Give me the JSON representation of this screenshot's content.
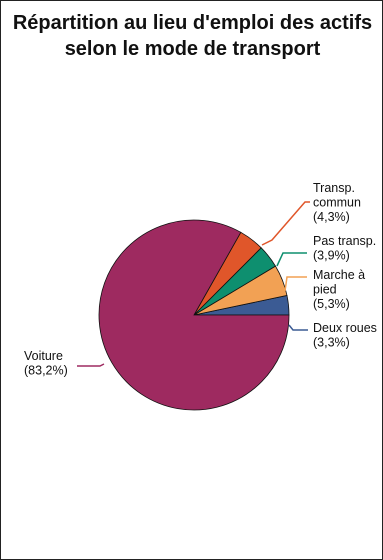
{
  "chart_data": {
    "type": "pie",
    "title": "Répartition au lieu d'emploi des actifs selon le mode de transport",
    "start_angle_deg": 0,
    "direction": "counterclockwise",
    "slices": [
      {
        "lines": [
          "Deux roues",
          "(3,3%)"
        ],
        "value": 3.3,
        "color": "#3b5b94"
      },
      {
        "lines": [
          "Marche à",
          "pied",
          "(5,3%)"
        ],
        "value": 5.3,
        "color": "#f2a154"
      },
      {
        "lines": [
          "Pas transp.",
          "(3,9%)"
        ],
        "value": 3.9,
        "color": "#0e8f6f"
      },
      {
        "lines": [
          "Transp.",
          "commun",
          "(4,3%)"
        ],
        "value": 4.3,
        "color": "#e0562a"
      },
      {
        "lines": [
          "Voiture",
          "(83,2%)"
        ],
        "value": 83.2,
        "color": "#9e2a60"
      }
    ]
  }
}
